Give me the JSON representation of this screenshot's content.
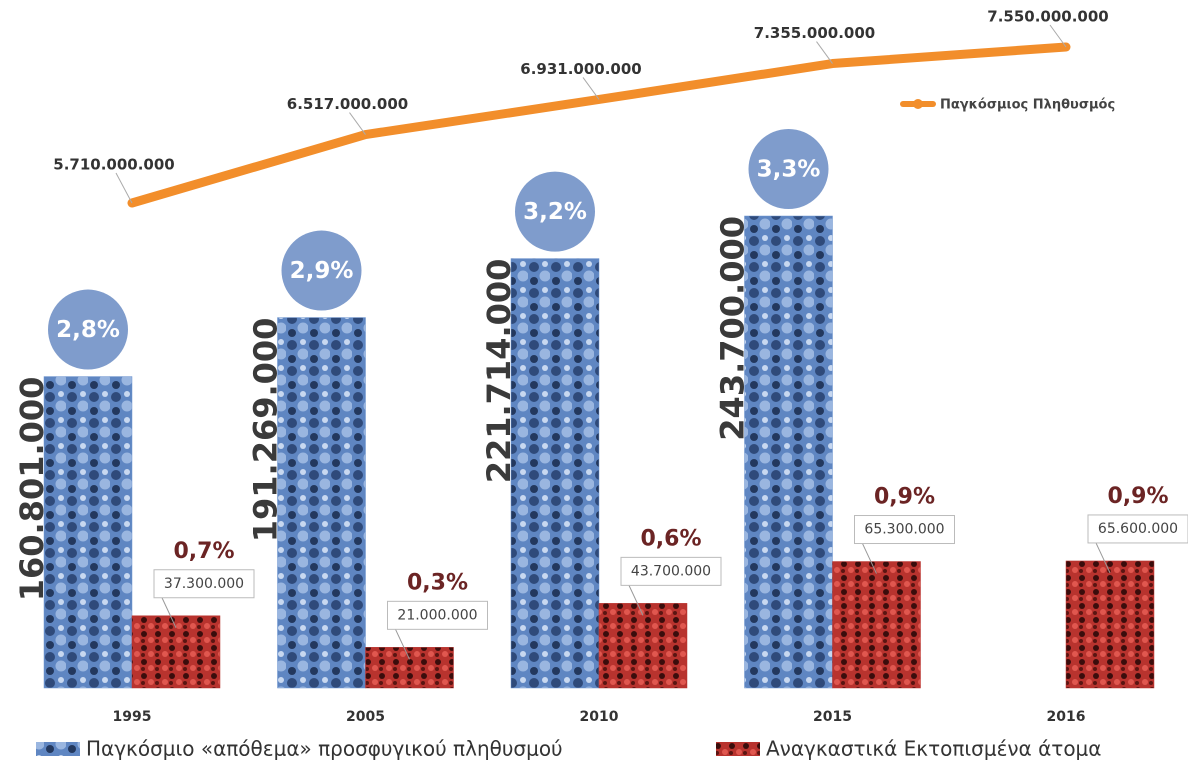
{
  "chart_data": {
    "type": "bar",
    "categories": [
      "1995",
      "2005",
      "2010",
      "2015",
      "2016"
    ],
    "series": [
      {
        "name": "Παγκόσμιο «απόθεμα» προσφυγικού πληθυσμού",
        "type": "bar",
        "color": "#6f95cf",
        "values": [
          160801000,
          191269000,
          221714000,
          243700000,
          null
        ],
        "value_labels": [
          "160.801.000",
          "191.269.000",
          "221.714.000",
          "243.700.000",
          null
        ],
        "percent_values": [
          2.8,
          2.9,
          3.2,
          3.3,
          null
        ],
        "percent_labels": [
          "2,8%",
          "2,9%",
          "3,2%",
          "3,3%",
          null
        ]
      },
      {
        "name": "Αναγκαστικά Εκτοπισμένα άτομα",
        "type": "bar",
        "color": "#b8332e",
        "values": [
          37300000,
          21000000,
          43700000,
          65300000,
          65600000
        ],
        "value_labels": [
          "37.300.000",
          "21.000.000",
          "43.700.000",
          "65.300.000",
          "65.600.000"
        ],
        "percent_values": [
          0.7,
          0.3,
          0.6,
          0.9,
          0.9
        ],
        "percent_labels": [
          "0,7%",
          "0,3%",
          "0,6%",
          "0,9%",
          "0,9%"
        ]
      },
      {
        "name": "Παγκόσμιος Πληθυσμός",
        "type": "line",
        "color": "#f28e2b",
        "values": [
          5710000000,
          6517000000,
          6931000000,
          7355000000,
          7550000000
        ],
        "value_labels": [
          "5.710.000.000",
          "6.517.000.000",
          "6.931.000.000",
          "7.355.000.000",
          "7.550.000.000"
        ]
      }
    ]
  }
}
